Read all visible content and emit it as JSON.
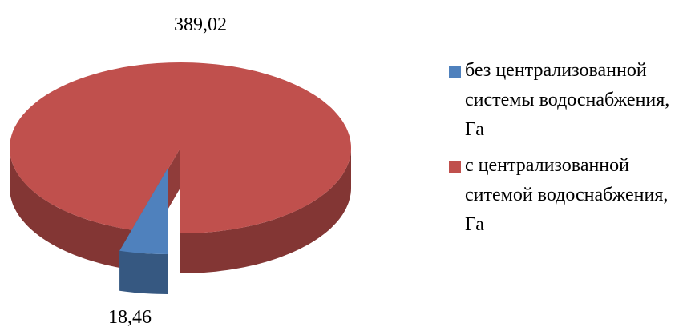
{
  "chart_data": {
    "type": "pie3d",
    "categories": [
      "без централизованной системы водоснабжения, Га",
      "с централизованной ситемой водоснабжения, Га"
    ],
    "values": [
      18.46,
      389.02
    ],
    "value_labels": [
      "18,46",
      "389,02"
    ],
    "colors": [
      "#4f81bd",
      "#c0504d"
    ],
    "legend": "right"
  }
}
